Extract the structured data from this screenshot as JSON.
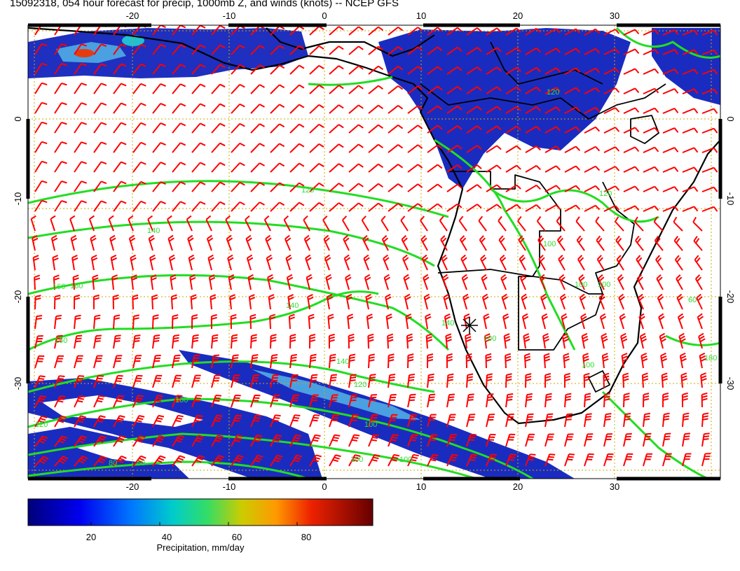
{
  "title": "15092318, 054 hour forecast for precip, 1000mb Z, and winds (knots) -- NCEP GFS",
  "axes": {
    "x_ticks": [
      "-20",
      "-10",
      "0",
      "10",
      "20",
      "30"
    ],
    "y_ticks": [
      "0",
      "-10",
      "-20",
      "-30"
    ],
    "x_range": [
      -30,
      40
    ],
    "y_range": [
      -40,
      10
    ]
  },
  "contour_labels": [
    "120",
    "140",
    "160",
    "160",
    "140",
    "140",
    "120",
    "100",
    "80",
    "60",
    "100",
    "120",
    "160",
    "100",
    "100",
    "120",
    "100",
    "100",
    "160",
    "180",
    "140",
    "100",
    "60",
    "100",
    "120"
  ],
  "colorbar": {
    "ticks": [
      "20",
      "40",
      "60",
      "80"
    ],
    "label": "Precipitation, mm/day",
    "range": [
      0,
      100
    ]
  },
  "colors": {
    "wind": "#ff0000",
    "contour": "#22dd22",
    "coast": "#000000",
    "grid": "#ccaa00"
  }
}
